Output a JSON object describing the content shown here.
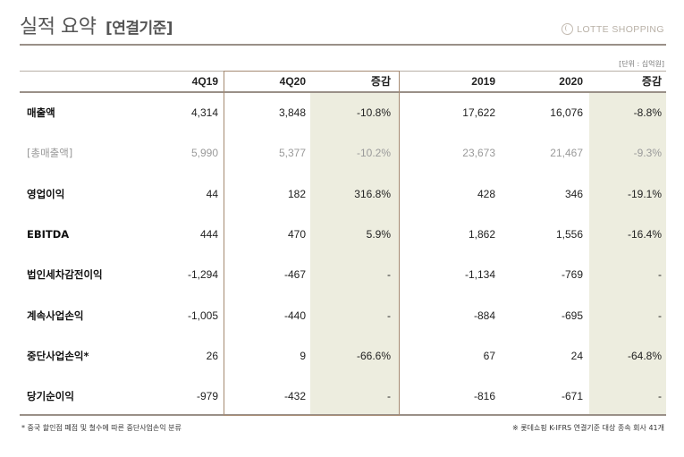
{
  "header": {
    "title": "실적 요약",
    "subtitle": "[연결기준]",
    "logo_text": "LOTTE SHOPPING",
    "unit": "[단위 : 십억원]"
  },
  "table": {
    "columns": [
      "4Q19",
      "4Q20",
      "증감",
      "2019",
      "2020",
      "증감"
    ],
    "rows": [
      {
        "label": "매출액",
        "values": [
          "4,314",
          "3,848",
          "-10.8%",
          "17,622",
          "16,076",
          "-8.8%"
        ],
        "muted": false
      },
      {
        "label": "[총매출액]",
        "values": [
          "5,990",
          "5,377",
          "-10.2%",
          "23,673",
          "21,467",
          "-9.3%"
        ],
        "muted": true
      },
      {
        "label": "영업이익",
        "values": [
          "44",
          "182",
          "316.8%",
          "428",
          "346",
          "-19.1%"
        ],
        "muted": false
      },
      {
        "label": "EBITDA",
        "values": [
          "444",
          "470",
          "5.9%",
          "1,862",
          "1,556",
          "-16.4%"
        ],
        "muted": false
      },
      {
        "label": "법인세차감전이익",
        "values": [
          "-1,294",
          "-467",
          "-",
          "-1,134",
          "-769",
          "-"
        ],
        "muted": false
      },
      {
        "label": "계속사업손익",
        "values": [
          "-1,005",
          "-440",
          "-",
          "-884",
          "-695",
          "-"
        ],
        "muted": false
      },
      {
        "label": "중단사업손익*",
        "values": [
          "26",
          "9",
          "-66.6%",
          "67",
          "24",
          "-64.8%"
        ],
        "muted": false
      },
      {
        "label": "당기순이익",
        "values": [
          "-979",
          "-432",
          "-",
          "-816",
          "-671",
          "-"
        ],
        "muted": false
      }
    ]
  },
  "footnotes": {
    "left": "* 중국 할인점 폐점 및 철수에 따른 중단사업손익 분류",
    "right": "※ 롯데쇼핑 K-IFRS 연결기준 대상 종속 회사 41개"
  },
  "colors": {
    "highlight_fill": "#ededdf",
    "frame": "#a58a72",
    "rule": "#9a9088"
  }
}
